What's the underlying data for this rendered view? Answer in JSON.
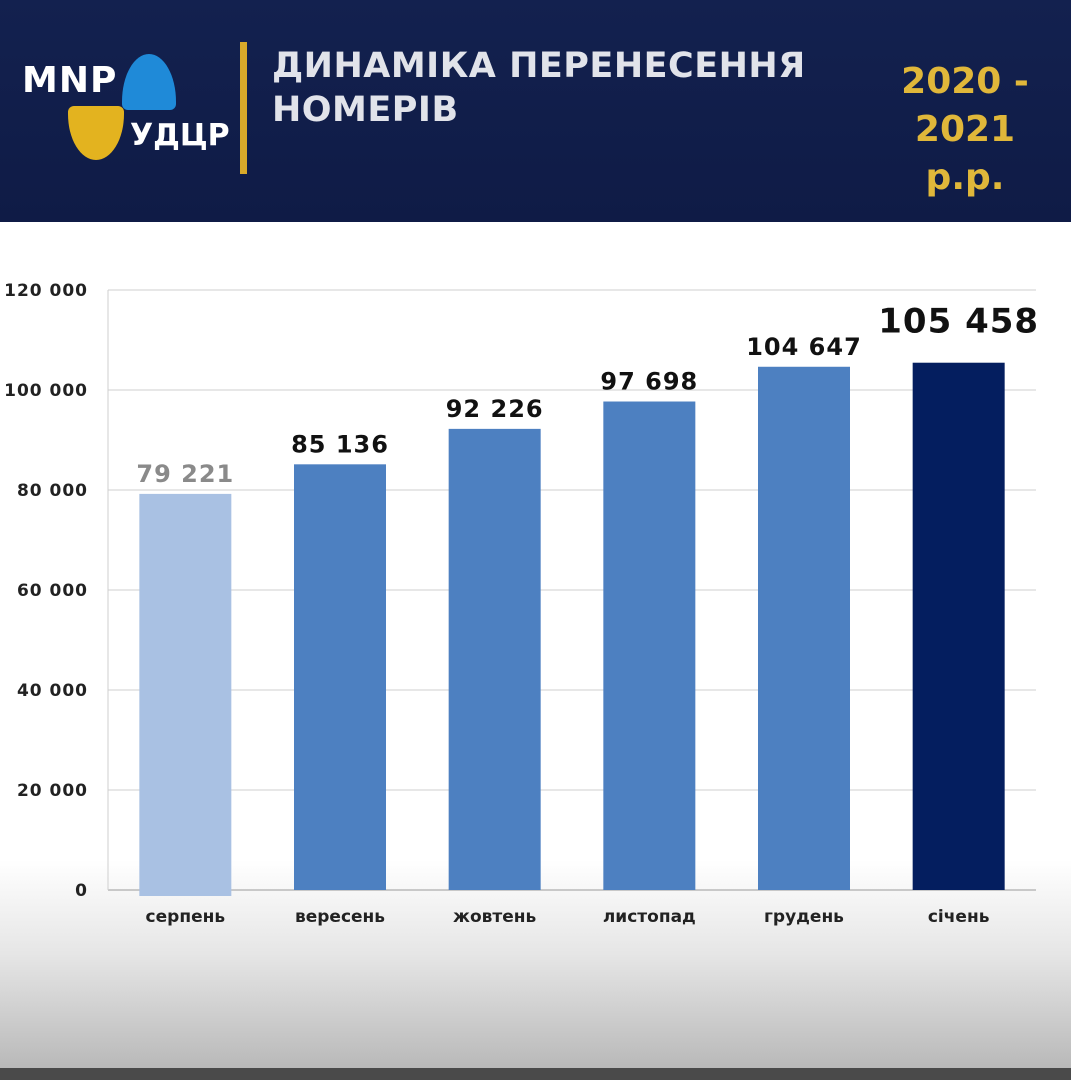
{
  "header": {
    "logo_text": "MNP",
    "logo_sub": "УДЦР",
    "title": "ДИНАМІКА ПЕРЕНЕСЕННЯ НОМЕРІВ",
    "years_line1": "2020 -",
    "years_line2": "2021",
    "years_line3": "р.р."
  },
  "colors": {
    "header_bg": "#13214f",
    "accent_gold": "#d8a92a",
    "bar_light": "#a9c1e3",
    "bar_mid": "#4d80c1",
    "bar_dark": "#041e5f"
  },
  "chart_data": {
    "type": "bar",
    "title": "ДИНАМІКА ПЕРЕНЕСЕННЯ НОМЕРІВ",
    "categories": [
      "серпень",
      "вересень",
      "жовтень",
      "листопад",
      "грудень",
      "січень"
    ],
    "values": [
      79221,
      85136,
      92226,
      97698,
      104647,
      105458
    ],
    "value_labels": [
      "79 221",
      "85 136",
      "92 226",
      "97 698",
      "104 647",
      "105 458"
    ],
    "ylim": [
      0,
      120000
    ],
    "yticks": [
      0,
      20000,
      40000,
      60000,
      80000,
      100000,
      120000
    ],
    "ytick_labels": [
      "0",
      "20 000",
      "40 000",
      "60 000",
      "80 000",
      "100 000",
      "120 000"
    ],
    "grid": true,
    "xlabel": "",
    "ylabel": ""
  }
}
